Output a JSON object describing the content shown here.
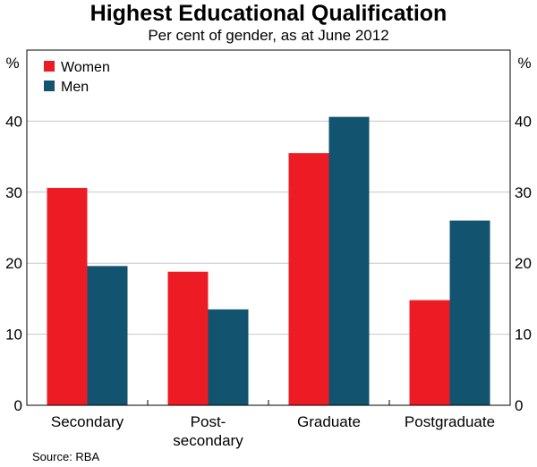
{
  "chart_data": {
    "type": "bar",
    "title": "Highest Educational Qualification",
    "subtitle": "Per cent of gender, as at June 2012",
    "ylabel_left": "%",
    "ylabel_right": "%",
    "ylim": [
      0,
      50
    ],
    "yticks": [
      0,
      10,
      20,
      30,
      40
    ],
    "categories": [
      [
        "Secondary"
      ],
      [
        "Post-",
        "secondary"
      ],
      [
        "Graduate"
      ],
      [
        "Postgraduate"
      ]
    ],
    "series": [
      {
        "name": "Women",
        "color": "#ed1c24",
        "values": [
          30.6,
          18.8,
          35.5,
          14.8
        ]
      },
      {
        "name": "Men",
        "color": "#12536f",
        "values": [
          19.6,
          13.5,
          40.6,
          26.0
        ]
      }
    ],
    "legend_position": "top-left",
    "grid": true,
    "source": "Source: RBA"
  }
}
